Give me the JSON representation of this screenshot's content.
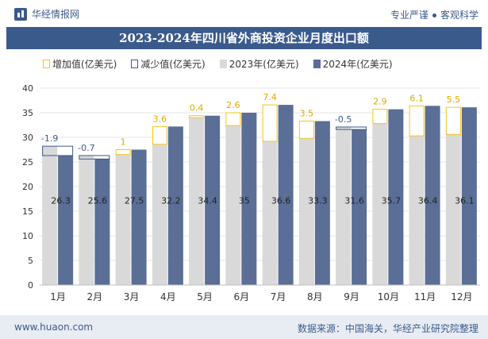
{
  "header": {
    "brand": "华经情报网",
    "tagline_left": "专业严谨",
    "tagline_right": "客观科学"
  },
  "footer": {
    "url": "www.huaon.com",
    "source": "数据来源：中国海关，华经产业研究院整理"
  },
  "colors": {
    "increase": "#f5c518",
    "decrease": "#3b5a8c",
    "y2023": "#d9d9d9",
    "y2024": "#5a6e96"
  },
  "chart_data": {
    "type": "bar",
    "title": "2023-2024年四川省外商投资企业月度出口额",
    "categories": [
      "1月",
      "2月",
      "3月",
      "4月",
      "5月",
      "6月",
      "7月",
      "8月",
      "9月",
      "10月",
      "11月",
      "12月"
    ],
    "legend": [
      "增加值(亿美元)",
      "减少值(亿美元)",
      "2023年(亿美元)",
      "2024年(亿美元)"
    ],
    "series": [
      {
        "name": "2023年(亿美元)",
        "values": [
          28.2,
          26.3,
          26.5,
          28.6,
          34.0,
          32.4,
          29.2,
          29.8,
          32.1,
          32.8,
          30.3,
          30.6
        ]
      },
      {
        "name": "2024年(亿美元)",
        "values": [
          26.3,
          25.6,
          27.5,
          32.2,
          34.4,
          35.0,
          36.6,
          33.3,
          31.6,
          35.7,
          36.4,
          36.1
        ]
      }
    ],
    "change_labels": [
      "-1.9",
      "-0.7",
      "1",
      "3.6",
      "0.4",
      "2.6",
      "7.4",
      "3.5",
      "-0.5",
      "2.9",
      "6.1",
      "5.5"
    ],
    "value_labels": [
      "26.3",
      "25.6",
      "27.5",
      "32.2",
      "34.4",
      "35",
      "36.6",
      "33.3",
      "31.6",
      "35.7",
      "36.4",
      "36.1"
    ],
    "y_ticks": [
      "0",
      "5",
      "10",
      "15",
      "20",
      "25",
      "30",
      "35",
      "40"
    ],
    "ylim": [
      0,
      40
    ],
    "legend_position": "top"
  }
}
